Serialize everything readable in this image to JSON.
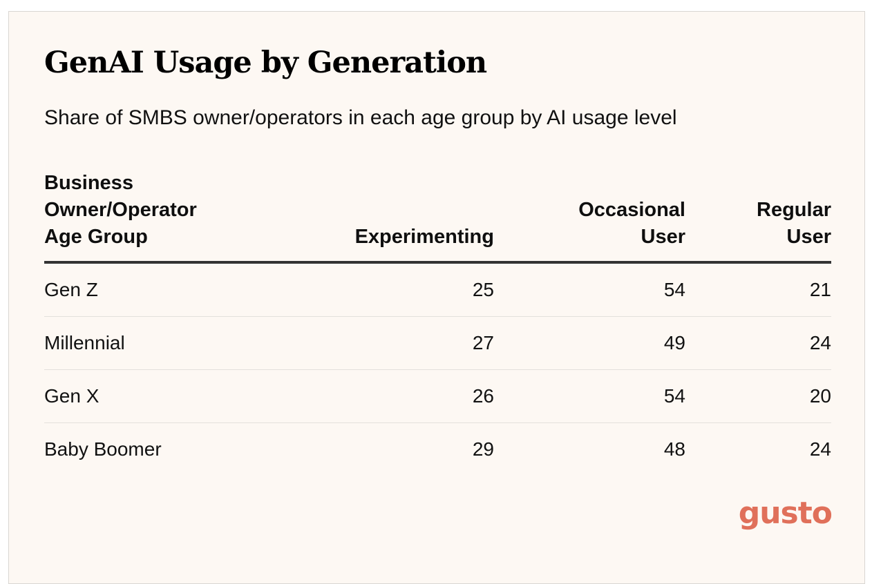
{
  "chart_data": {
    "type": "table",
    "title": "GenAI Usage by Generation",
    "subtitle": "Share of SMBS owner/operators in each age group by AI usage level",
    "columns": [
      {
        "label_lines": [
          "Business",
          "Owner/Operator",
          "Age Group"
        ]
      },
      {
        "label_lines": [
          "Experimenting"
        ]
      },
      {
        "label_lines": [
          "Occasional",
          "User"
        ]
      },
      {
        "label_lines": [
          "Regular",
          "User"
        ]
      }
    ],
    "rows": [
      {
        "label": "Gen Z",
        "values": [
          25,
          54,
          21
        ]
      },
      {
        "label": "Millennial",
        "values": [
          27,
          49,
          24
        ]
      },
      {
        "label": "Gen X",
        "values": [
          26,
          54,
          20
        ]
      },
      {
        "label": "Baby Boomer",
        "values": [
          29,
          48,
          24
        ]
      }
    ]
  },
  "brand": {
    "logo_text": "gusto",
    "logo_color": "#e0705a"
  },
  "colors": {
    "background": "#fdf8f3",
    "header_rule": "#333333",
    "row_divider": "#e3e0dc"
  }
}
